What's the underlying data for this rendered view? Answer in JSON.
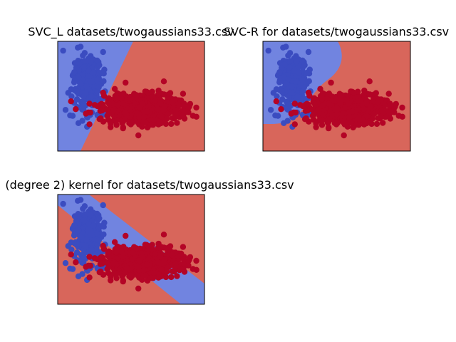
{
  "colors": {
    "class0": "#3b4cc0",
    "class1": "#b40426",
    "region0": "#7184e0",
    "region1": "#d8665b",
    "frame": "#000000"
  },
  "chart_data": [
    {
      "type": "scatter",
      "title": "SVC_L datasets/twogaussians33.csv",
      "kernel": "linear",
      "grid": false,
      "ticks": "hidden",
      "series": [
        {
          "class": 0,
          "center": [
            0.2,
            0.62
          ],
          "spread": [
            0.05,
            0.14
          ]
        },
        {
          "class": 1,
          "center": [
            0.58,
            0.38
          ],
          "spread": [
            0.14,
            0.07
          ]
        }
      ]
    },
    {
      "type": "scatter",
      "title": "SVC-R for datasets/twogaussians33.csv",
      "kernel": "rbf",
      "grid": false,
      "ticks": "hidden",
      "series": [
        {
          "class": 0,
          "center": [
            0.2,
            0.62
          ],
          "spread": [
            0.05,
            0.14
          ]
        },
        {
          "class": 1,
          "center": [
            0.58,
            0.38
          ],
          "spread": [
            0.14,
            0.07
          ]
        }
      ]
    },
    {
      "type": "scatter",
      "title": "(degree 2) kernel for datasets/twogaussians33.csv",
      "kernel": "poly-2",
      "grid": false,
      "ticks": "hidden",
      "series": [
        {
          "class": 0,
          "center": [
            0.2,
            0.62
          ],
          "spread": [
            0.05,
            0.14
          ]
        },
        {
          "class": 1,
          "center": [
            0.58,
            0.38
          ],
          "spread": [
            0.14,
            0.07
          ]
        }
      ]
    }
  ]
}
